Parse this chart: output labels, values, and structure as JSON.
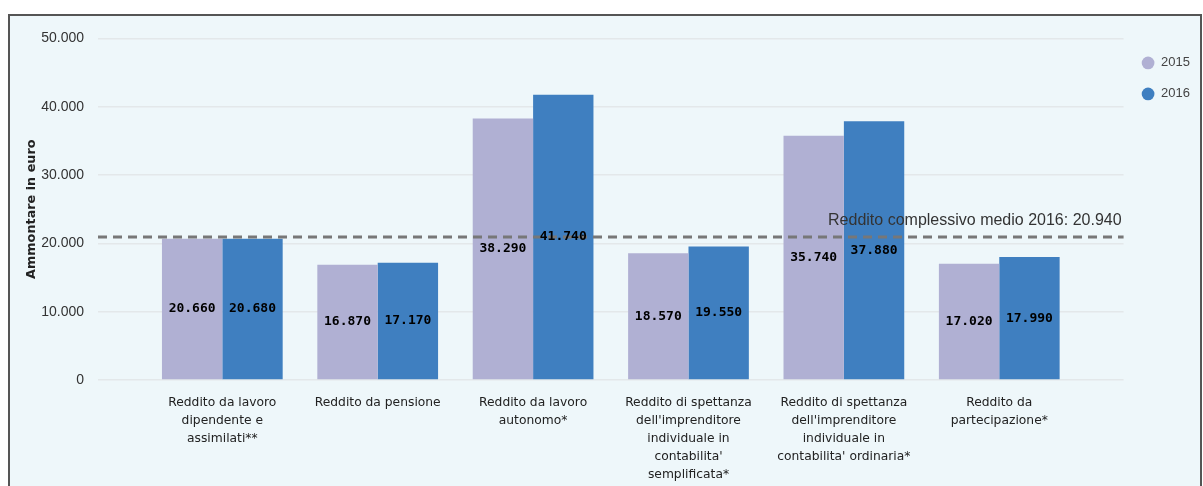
{
  "chart_data": {
    "type": "bar",
    "ylabel": "Ammontare in euro",
    "categories": [
      "Reddito da lavoro dipendente e assimilati**",
      "Reddito da pensione",
      "Reddito da lavoro autonomo*",
      "Reddito di spettanza dell'imprenditore individuale in contabilita' semplificata*",
      "Reddito di spettanza dell'imprenditore individuale in contabilita' ordinaria*",
      "Reddito da partecipazione*"
    ],
    "series": [
      {
        "name": "2015",
        "color": "#b0b0d3",
        "values": [
          20660,
          16870,
          38290,
          18570,
          35740,
          17020
        ],
        "value_labels": [
          "20.660",
          "16.870",
          "38.290",
          "18.570",
          "35.740",
          "17.020"
        ]
      },
      {
        "name": "2016",
        "color": "#3f7fc0",
        "values": [
          20680,
          17170,
          41740,
          19550,
          37880,
          17990
        ],
        "value_labels": [
          "20.680",
          "17.170",
          "41.740",
          "19.550",
          "37.880",
          "17.990"
        ]
      }
    ],
    "ylim": [
      0,
      50000
    ],
    "yticks": [
      0,
      {
        "value": 10000,
        "label": "10.000"
      },
      {
        "value": 20000,
        "label": "20.000"
      },
      {
        "value": 30000,
        "label": "30.000"
      },
      {
        "value": 40000,
        "label": "40.000"
      },
      {
        "value": 50000,
        "label": "50.000"
      }
    ],
    "grid": "y",
    "legend": "top right",
    "ref_lines": [
      {
        "axis": "y",
        "value": 20940,
        "label": "Reddito complessivo medio 2016: 20.940",
        "color": "#777777",
        "line_style": "dashed"
      }
    ]
  }
}
